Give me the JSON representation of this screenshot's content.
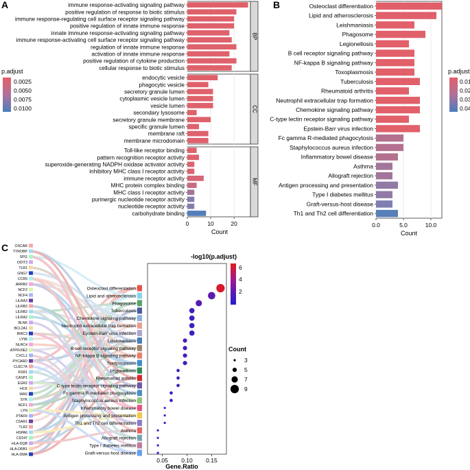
{
  "colors": {
    "bar_low": "#E25F68",
    "bar_high": "#4A7EBB",
    "gradient_stops": [
      "#E25F68",
      "#D2697E",
      "#A57598",
      "#7C80B3",
      "#4A7EBB"
    ],
    "grid": "#EBEBEB",
    "facet_strip": "#D9D9D9",
    "dot_low": "#2222CC",
    "dot_mid": "#6A1AA8",
    "dot_high": "#E31A1C"
  },
  "chart_data": [
    {
      "panel": "A",
      "type": "bar",
      "orientation": "horizontal",
      "xlabel": "Count",
      "xlim": [
        0,
        27
      ],
      "xticks": [
        0,
        10,
        20
      ],
      "legend": {
        "title": "p.adjust",
        "labels": [
          "0.0025",
          "0.0050",
          "0.0075",
          "0.0100"
        ],
        "values": [
          0.0025,
          0.005,
          0.0075,
          0.01
        ],
        "min": 0.0005,
        "max": 0.0115
      },
      "facets": [
        {
          "name": "BP",
          "categories": [
            {
              "label": "immune response-activating signaling pathway",
              "count": 26,
              "padj": 0.0008
            },
            {
              "label": "positive regulation of response to biotic stimulus",
              "count": 21,
              "padj": 0.001
            },
            {
              "label": "immune response-regulating cell surface receptor signaling pathway",
              "count": 20,
              "padj": 0.0008
            },
            {
              "label": "positive regulation of innate immune response",
              "count": 20,
              "padj": 0.001
            },
            {
              "label": "innate immune response-activating signaling pathway",
              "count": 18,
              "padj": 0.001
            },
            {
              "label": "immune response-activating cell surface receptor signaling pathway",
              "count": 19,
              "padj": 0.001
            },
            {
              "label": "regulation of innate immune response",
              "count": 21,
              "padj": 0.001
            },
            {
              "label": "activation of innate immune response",
              "count": 18,
              "padj": 0.001
            },
            {
              "label": "positive regulation of cytokine production",
              "count": 21,
              "padj": 0.001
            },
            {
              "label": "cellular response to biotic stimulus",
              "count": 19,
              "padj": 0.001
            }
          ]
        },
        {
          "name": "CC",
          "categories": [
            {
              "label": "endocytic vesicle",
              "count": 13,
              "padj": 0.0008
            },
            {
              "label": "phagocytic vesicle",
              "count": 9,
              "padj": 0.0008
            },
            {
              "label": "secretory granule lumen",
              "count": 11,
              "padj": 0.001
            },
            {
              "label": "cytoplasmic vesicle lumen",
              "count": 11,
              "padj": 0.001
            },
            {
              "label": "vesicle lumen",
              "count": 11,
              "padj": 0.001
            },
            {
              "label": "secondary lysosome",
              "count": 4,
              "padj": 0.001
            },
            {
              "label": "secretory granule membrane",
              "count": 10,
              "padj": 0.001
            },
            {
              "label": "specific granule lumen",
              "count": 5,
              "padj": 0.0012
            },
            {
              "label": "membrane raft",
              "count": 9,
              "padj": 0.0012
            },
            {
              "label": "membrane microdomain",
              "count": 9,
              "padj": 0.0012
            }
          ]
        },
        {
          "name": "MF",
          "categories": [
            {
              "label": "Toll-like receptor binding",
              "count": 4,
              "padj": 0.0012
            },
            {
              "label": "pattern recognition receptor activity",
              "count": 5,
              "padj": 0.0012
            },
            {
              "label": "superoxide-generating NADPH oxidase activator activity",
              "count": 3,
              "padj": 0.0015
            },
            {
              "label": "inhibitory MHC class I receptor activity",
              "count": 3,
              "padj": 0.0015
            },
            {
              "label": "immune receptor activity",
              "count": 7,
              "padj": 0.0025
            },
            {
              "label": "MHC protein complex binding",
              "count": 4,
              "padj": 0.004
            },
            {
              "label": "MHC class I receptor activity",
              "count": 3,
              "padj": 0.006
            },
            {
              "label": "purinergic nucleotide receptor activity",
              "count": 3,
              "padj": 0.008
            },
            {
              "label": "nucleotide receptor activity",
              "count": 3,
              "padj": 0.008
            },
            {
              "label": "carbohydrate binding",
              "count": 8,
              "padj": 0.011
            }
          ]
        }
      ]
    },
    {
      "panel": "B",
      "type": "bar",
      "orientation": "horizontal",
      "xlabel": "Count",
      "xlim": [
        0,
        12
      ],
      "xticks": [
        0.0,
        5.0,
        10.0
      ],
      "xtick_labels": [
        "0.0",
        "5.0",
        "10.0"
      ],
      "legend": {
        "title": "p.adjust",
        "labels": [
          "0.01",
          "0.02",
          "0.03",
          "0.04"
        ],
        "values": [
          0.01,
          0.02,
          0.03,
          0.04
        ],
        "min": 0.0,
        "max": 0.048
      },
      "categories": [
        {
          "label": "Osteoclast differentiation",
          "count": 12,
          "padj": 0.0005
        },
        {
          "label": "Lipid and atherosclerosis",
          "count": 11,
          "padj": 0.0015
        },
        {
          "label": "Leishmaniasis",
          "count": 7,
          "padj": 0.001
        },
        {
          "label": "Phagosome",
          "count": 9,
          "padj": 0.001
        },
        {
          "label": "Legionellosis",
          "count": 6,
          "padj": 0.001
        },
        {
          "label": "B cell receptor signaling pathway",
          "count": 7,
          "padj": 0.001
        },
        {
          "label": "NF-kappa B signaling pathway",
          "count": 7,
          "padj": 0.001
        },
        {
          "label": "Toxoplasmosis",
          "count": 7,
          "padj": 0.001
        },
        {
          "label": "Tuberculosis",
          "count": 8,
          "padj": 0.001
        },
        {
          "label": "Rheumatoid arthritis",
          "count": 6,
          "padj": 0.001
        },
        {
          "label": "Neutrophil extracellular trap formation",
          "count": 8,
          "padj": 0.001
        },
        {
          "label": "Chemokine signaling pathway",
          "count": 8,
          "padj": 0.001
        },
        {
          "label": "C-type lectin receptor signaling pathway",
          "count": 6,
          "padj": 0.001
        },
        {
          "label": "Epstein-Barr virus infection",
          "count": 8,
          "padj": 0.001
        },
        {
          "label": "Fc gamma R-mediated phagocytosis",
          "count": 5,
          "padj": 0.02
        },
        {
          "label": "Staphylococcus aureus infection",
          "count": 5,
          "padj": 0.02
        },
        {
          "label": "Inflammatory bowel disease",
          "count": 4,
          "padj": 0.02
        },
        {
          "label": "Asthma",
          "count": 3,
          "padj": 0.025
        },
        {
          "label": "Allograft rejection",
          "count": 3,
          "padj": 0.025
        },
        {
          "label": "Antigen processing and presentation",
          "count": 4,
          "padj": 0.03
        },
        {
          "label": "Type I diabetes mellitus",
          "count": 3,
          "padj": 0.03
        },
        {
          "label": "Graft-versus-host disease",
          "count": 3,
          "padj": 0.035
        },
        {
          "label": "Th1 and Th2 cell differentiation",
          "count": 4,
          "padj": 0.045
        }
      ]
    },
    {
      "panel": "C",
      "type": "scatter",
      "xlabel": "Gene.Ratio",
      "xlim": [
        0.02,
        0.18
      ],
      "xticks": [
        0.05,
        0.1,
        0.15
      ],
      "xtick_labels": [
        "0.05",
        "0.10",
        "0.15"
      ],
      "color_legend": {
        "title": "-log10(p.adjust)",
        "labels": [
          "2",
          "4",
          "6"
        ],
        "values": [
          2,
          4,
          6
        ],
        "min": 1.2,
        "max": 6.8
      },
      "size_legend": {
        "title": "Count",
        "labels": [
          "3",
          "5",
          "7",
          "9"
        ],
        "values": [
          3,
          5,
          7,
          9
        ]
      },
      "genes": [
        "OSCAR",
        "TYROBP",
        "SPI1",
        "DDIT3",
        "TLR1",
        "GNG7",
        "CCR5",
        "ARRB2",
        "NCF2",
        "NCF4",
        "LILRA3",
        "LILRB3",
        "LILRB2",
        "LILRA2",
        "BLNK",
        "BCL2A1",
        "BIRC3",
        "LY96",
        "NLRC4",
        "ATP6V0E2",
        "CXCL1",
        "PYCARD",
        "CLEC7A",
        "KSR1",
        "CASP1",
        "EGR2",
        "HCK",
        "WAS",
        "SYK",
        "NCF1",
        "LYN",
        "PTAFR",
        "C5AR1",
        "TLR2",
        "HSPA6",
        "CD247",
        "HLA-DQB",
        "HLA-DRB1",
        "HLA-DMA"
      ],
      "terms": [
        {
          "label": "Osteoclast differentiation",
          "gene_ratio": 0.168,
          "neglog10p": 6.5,
          "count": 9
        },
        {
          "label": "Lipid and atherosclerosis",
          "gene_ratio": 0.15,
          "neglog10p": 3.5,
          "count": 8
        },
        {
          "label": "Phagosome",
          "gene_ratio": 0.124,
          "neglog10p": 3.2,
          "count": 7
        },
        {
          "label": "Tuberculosis",
          "gene_ratio": 0.11,
          "neglog10p": 2.5,
          "count": 6
        },
        {
          "label": "Chemokine signaling pathway",
          "gene_ratio": 0.11,
          "neglog10p": 2.3,
          "count": 6
        },
        {
          "label": "Neutrophil extracellular trap formation",
          "gene_ratio": 0.11,
          "neglog10p": 2.3,
          "count": 6
        },
        {
          "label": "Epstein-Barr virus infection",
          "gene_ratio": 0.11,
          "neglog10p": 2.2,
          "count": 6
        },
        {
          "label": "Leishmaniasis",
          "gene_ratio": 0.096,
          "neglog10p": 2.8,
          "count": 5
        },
        {
          "label": "B cell receptor signaling pathway",
          "gene_ratio": 0.096,
          "neglog10p": 2.6,
          "count": 5
        },
        {
          "label": "NF-kappa B signaling pathway",
          "gene_ratio": 0.096,
          "neglog10p": 2.6,
          "count": 5
        },
        {
          "label": "Toxoplasmosis",
          "gene_ratio": 0.096,
          "neglog10p": 2.5,
          "count": 5
        },
        {
          "label": "Legionellosis",
          "gene_ratio": 0.082,
          "neglog10p": 2.4,
          "count": 4
        },
        {
          "label": "Rheumatoid arthritis",
          "gene_ratio": 0.082,
          "neglog10p": 2.3,
          "count": 4
        },
        {
          "label": "C-type lectin receptor signaling pathway",
          "gene_ratio": 0.082,
          "neglog10p": 2.3,
          "count": 4
        },
        {
          "label": "Fc gamma R-mediated phagocytosis",
          "gene_ratio": 0.068,
          "neglog10p": 2.0,
          "count": 4
        },
        {
          "label": "Staphylococcus aureus infection",
          "gene_ratio": 0.068,
          "neglog10p": 2.0,
          "count": 4
        },
        {
          "label": "Inflammatory bowel disease",
          "gene_ratio": 0.055,
          "neglog10p": 1.9,
          "count": 3
        },
        {
          "label": "Antigen processing and presentation",
          "gene_ratio": 0.055,
          "neglog10p": 1.8,
          "count": 3
        },
        {
          "label": "Th1 and Th2 cell differentiation",
          "gene_ratio": 0.055,
          "neglog10p": 1.4,
          "count": 3
        },
        {
          "label": "Asthma",
          "gene_ratio": 0.041,
          "neglog10p": 1.9,
          "count": 3
        },
        {
          "label": "Allograft rejection",
          "gene_ratio": 0.041,
          "neglog10p": 1.9,
          "count": 3
        },
        {
          "label": "Type I diabetes mellitus",
          "gene_ratio": 0.041,
          "neglog10p": 1.8,
          "count": 3
        },
        {
          "label": "Graft-versus-host disease",
          "gene_ratio": 0.041,
          "neglog10p": 1.8,
          "count": 3
        }
      ],
      "term_colors": [
        "#E6534C",
        "#8BD3E6",
        "#56A36C",
        "#4B5D9C",
        "#8DB3D8",
        "#E8A094",
        "#B0A5CF",
        "#4B7DB7",
        "#A0876A",
        "#E8806B",
        "#3D8ECE",
        "#2E8B57",
        "#D02B2B",
        "#6F5BA6",
        "#4A8FC3",
        "#93C47D",
        "#E75480",
        "#F2C94C",
        "#8E7CC3",
        "#E06666",
        "#76A5AF",
        "#C27BA0",
        "#6D9EEB"
      ],
      "gene_colors": [
        "#F4A6A6",
        "#A6D8F4",
        "#A6F4C2",
        "#D0A6F4",
        "#F4D8A6",
        "#1F3FBF",
        "#A6F4F0",
        "#F4A6DA",
        "#D8F4A6",
        "#A6B6F4",
        "#6B3FA0"
      ]
    }
  ],
  "panel_labels": [
    "A",
    "B",
    "C"
  ]
}
